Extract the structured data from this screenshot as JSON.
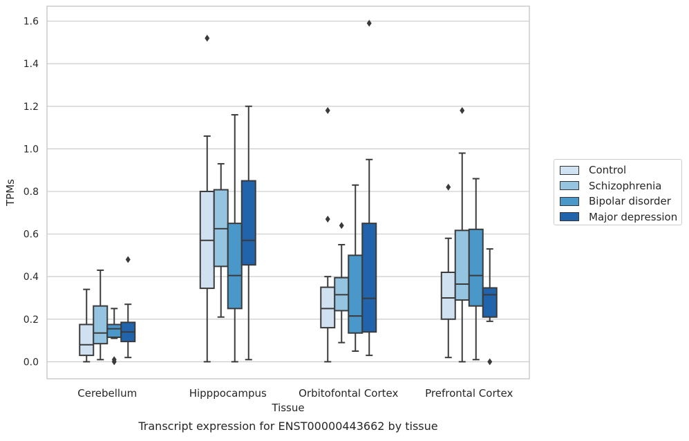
{
  "chart_data": {
    "type": "box",
    "title": "Transcript expression for ENST00000443662 by tissue",
    "xlabel": "Tissue",
    "ylabel": "TPMs",
    "ylim": [
      -0.08,
      1.67
    ],
    "yticks": [
      "0.0",
      "0.2",
      "0.4",
      "0.6",
      "0.8",
      "1.0",
      "1.2",
      "1.4",
      "1.6"
    ],
    "grid": true,
    "legend_position": "right",
    "categories": [
      "Cerebellum",
      "Hipppocampus",
      "Orbitofontal Cortex",
      "Prefrontal Cortex"
    ],
    "series": [
      {
        "name": "Control",
        "color": "#d0e1f2",
        "boxes": [
          {
            "whislo": 0.0,
            "q1": 0.03,
            "median": 0.08,
            "q3": 0.175,
            "whishi": 0.34,
            "fliers": []
          },
          {
            "whislo": 0.0,
            "q1": 0.345,
            "median": 0.57,
            "q3": 0.8,
            "whishi": 1.06,
            "fliers": [
              1.52
            ]
          },
          {
            "whislo": 0.0,
            "q1": 0.16,
            "median": 0.25,
            "q3": 0.35,
            "whishi": 0.4,
            "fliers": [
              0.67,
              1.18
            ]
          },
          {
            "whislo": 0.02,
            "q1": 0.2,
            "median": 0.3,
            "q3": 0.42,
            "whishi": 0.58,
            "fliers": [
              0.82
            ]
          }
        ]
      },
      {
        "name": "Schizophrenia",
        "color": "#94c4df",
        "boxes": [
          {
            "whislo": 0.01,
            "q1": 0.085,
            "median": 0.135,
            "q3": 0.262,
            "whishi": 0.43,
            "fliers": []
          },
          {
            "whislo": 0.21,
            "q1": 0.448,
            "median": 0.625,
            "q3": 0.808,
            "whishi": 0.93,
            "fliers": []
          },
          {
            "whislo": 0.09,
            "q1": 0.24,
            "median": 0.315,
            "q3": 0.395,
            "whishi": 0.55,
            "fliers": [
              0.64
            ]
          },
          {
            "whislo": 0.0,
            "q1": 0.29,
            "median": 0.365,
            "q3": 0.617,
            "whishi": 0.98,
            "fliers": [
              1.18
            ]
          }
        ]
      },
      {
        "name": "Bipolar disorder",
        "color": "#4a98c9",
        "boxes": [
          {
            "whislo": 0.11,
            "q1": 0.115,
            "median": 0.155,
            "q3": 0.175,
            "whishi": 0.25,
            "fliers": [
              0.0,
              0.01
            ]
          },
          {
            "whislo": 0.0,
            "q1": 0.25,
            "median": 0.405,
            "q3": 0.65,
            "whishi": 1.16,
            "fliers": []
          },
          {
            "whislo": 0.05,
            "q1": 0.135,
            "median": 0.215,
            "q3": 0.5,
            "whishi": 0.83,
            "fliers": []
          },
          {
            "whislo": 0.01,
            "q1": 0.262,
            "median": 0.405,
            "q3": 0.622,
            "whishi": 0.86,
            "fliers": []
          }
        ]
      },
      {
        "name": "Major depression",
        "color": "#2164ab",
        "boxes": [
          {
            "whislo": 0.02,
            "q1": 0.095,
            "median": 0.14,
            "q3": 0.185,
            "whishi": 0.27,
            "fliers": [
              0.48
            ]
          },
          {
            "whislo": 0.01,
            "q1": 0.455,
            "median": 0.57,
            "q3": 0.85,
            "whishi": 1.2,
            "fliers": []
          },
          {
            "whislo": 0.03,
            "q1": 0.14,
            "median": 0.298,
            "q3": 0.65,
            "whishi": 0.95,
            "fliers": [
              1.59
            ]
          },
          {
            "whislo": 0.19,
            "q1": 0.21,
            "median": 0.315,
            "q3": 0.347,
            "whishi": 0.53,
            "fliers": [
              0.0
            ]
          }
        ]
      }
    ]
  }
}
